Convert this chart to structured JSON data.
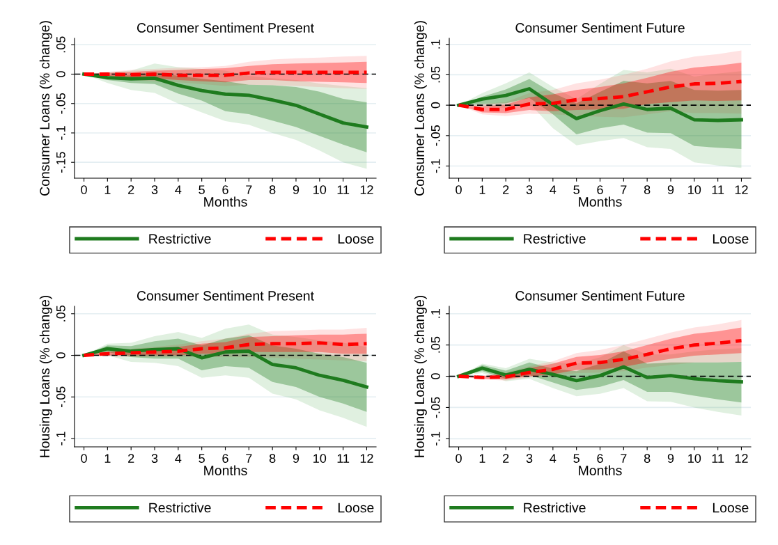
{
  "chart_data": [
    {
      "type": "line",
      "title": "Consumer Sentiment Present",
      "xlabel": "Months",
      "ylabel": "Consumer Loans (% change)",
      "x": [
        0,
        1,
        2,
        3,
        4,
        5,
        6,
        7,
        8,
        9,
        10,
        11,
        12
      ],
      "xlim": [
        -0.4,
        12.4
      ],
      "xticks": [
        0,
        1,
        2,
        3,
        4,
        5,
        6,
        7,
        8,
        9,
        10,
        11,
        12
      ],
      "ylim": [
        -0.177,
        0.061
      ],
      "yticks": [
        {
          "value": -0.15,
          "label": "-.15"
        },
        {
          "value": -0.1,
          "label": "-.1"
        },
        {
          "value": -0.05,
          "label": "-.05"
        },
        0,
        {
          "value": 0.05,
          "label": ".05"
        }
      ],
      "grid": "y",
      "legend": "bottom",
      "ref_lines": [
        {
          "axis": "y",
          "value": 0,
          "color": "#000000",
          "line_style": "dashed"
        }
      ],
      "series": [
        {
          "type": "area",
          "color": "#62b462",
          "values": [
            null,
            null,
            null,
            null,
            null,
            null,
            null,
            null,
            null,
            null,
            null,
            null,
            null
          ],
          "lower": [
            0,
            -0.015,
            -0.027,
            -0.032,
            -0.05,
            -0.065,
            -0.08,
            -0.086,
            -0.1,
            -0.112,
            -0.13,
            -0.15,
            -0.161
          ],
          "upper": [
            0,
            0.003,
            0.006,
            0.018,
            0.012,
            0.009,
            0.006,
            -0.003,
            -0.007,
            -0.01,
            -0.016,
            -0.02,
            -0.024
          ]
        },
        {
          "type": "area",
          "color": "#ff7070",
          "values": [
            null,
            null,
            null,
            null,
            null,
            null,
            null,
            null,
            null,
            null,
            null,
            null,
            null
          ],
          "lower": [
            0,
            -0.005,
            -0.01,
            -0.012,
            -0.014,
            -0.017,
            -0.02,
            -0.018,
            -0.019,
            -0.02,
            -0.022,
            -0.024,
            -0.025
          ],
          "upper": [
            0,
            0.004,
            0.007,
            0.009,
            0.011,
            0.012,
            0.014,
            0.021,
            0.025,
            0.027,
            0.028,
            0.03,
            0.031
          ]
        },
        {
          "name": "Restrictive",
          "color": "#1e7b1e",
          "line_style": "solid",
          "values": [
            0,
            -0.006,
            -0.008,
            -0.007,
            -0.019,
            -0.028,
            -0.034,
            -0.036,
            -0.044,
            -0.053,
            -0.068,
            -0.083,
            -0.09
          ],
          "lower": [
            0,
            -0.01,
            -0.015,
            -0.017,
            -0.033,
            -0.045,
            -0.063,
            -0.068,
            -0.079,
            -0.09,
            -0.105,
            -0.12,
            -0.133
          ],
          "upper": [
            0,
            -0.002,
            -0.002,
            0.003,
            -0.003,
            -0.008,
            -0.012,
            -0.018,
            -0.019,
            -0.022,
            -0.03,
            -0.042,
            -0.048
          ]
        },
        {
          "name": "Loose",
          "color": "#ff0000",
          "line_style": "dashed",
          "values": [
            0,
            0,
            -0.001,
            0,
            -0.002,
            -0.002,
            -0.002,
            0.002,
            0.003,
            0.003,
            0.003,
            0.003,
            0.003
          ],
          "lower": [
            0,
            -0.003,
            -0.006,
            -0.007,
            -0.01,
            -0.012,
            -0.014,
            -0.01,
            -0.01,
            -0.012,
            -0.013,
            -0.014,
            -0.015
          ],
          "upper": [
            0,
            0.002,
            0.004,
            0.006,
            0.007,
            0.009,
            0.01,
            0.014,
            0.017,
            0.018,
            0.019,
            0.02,
            0.021
          ]
        }
      ]
    },
    {
      "type": "line",
      "title": "Consumer Sentiment Future",
      "xlabel": "Months",
      "ylabel": "Consumer Loans (% change)",
      "x": [
        0,
        1,
        2,
        3,
        4,
        5,
        6,
        7,
        8,
        9,
        10,
        11,
        12
      ],
      "xlim": [
        -0.4,
        12.4
      ],
      "xticks": [
        0,
        1,
        2,
        3,
        4,
        5,
        6,
        7,
        8,
        9,
        10,
        11,
        12
      ],
      "ylim": [
        -0.12,
        0.11
      ],
      "yticks": [
        {
          "value": -0.1,
          "label": "-.1"
        },
        {
          "value": -0.05,
          "label": "-.05"
        },
        0,
        {
          "value": 0.05,
          "label": ".05"
        },
        {
          "value": 0.1,
          "label": ".1"
        }
      ],
      "grid": "y",
      "legend": "bottom",
      "ref_lines": [
        {
          "axis": "y",
          "value": 0,
          "color": "#000000",
          "line_style": "dashed"
        }
      ],
      "series": [
        {
          "type": "area",
          "color": "#62b462",
          "values": [
            null,
            null,
            null,
            null,
            null,
            null,
            null,
            null,
            null,
            null,
            null,
            null,
            null
          ],
          "lower": [
            0,
            -0.003,
            -0.004,
            0.003,
            -0.038,
            -0.066,
            -0.059,
            -0.054,
            -0.069,
            -0.072,
            -0.094,
            -0.099,
            -0.103
          ],
          "upper": [
            0,
            0.02,
            0.036,
            0.054,
            0.03,
            0.01,
            0.035,
            0.058,
            0.054,
            0.06,
            0.047,
            0.052,
            0.056
          ]
        },
        {
          "type": "area",
          "color": "#ff7070",
          "values": [
            null,
            null,
            null,
            null,
            null,
            null,
            null,
            null,
            null,
            null,
            null,
            null,
            null
          ],
          "lower": [
            0,
            -0.015,
            -0.018,
            -0.014,
            -0.015,
            -0.017,
            -0.019,
            -0.02,
            -0.015,
            -0.01,
            -0.013,
            -0.013,
            -0.014
          ],
          "upper": [
            0,
            0.002,
            0.005,
            0.02,
            0.025,
            0.036,
            0.042,
            0.05,
            0.06,
            0.072,
            0.08,
            0.084,
            0.09
          ]
        },
        {
          "name": "Restrictive",
          "color": "#1e7b1e",
          "line_style": "solid",
          "values": [
            0,
            0.01,
            0.016,
            0.027,
            0.001,
            -0.022,
            -0.009,
            0.002,
            -0.007,
            -0.005,
            -0.024,
            -0.025,
            -0.024
          ],
          "lower": [
            0,
            0.002,
            0.003,
            0.012,
            -0.015,
            -0.048,
            -0.038,
            -0.032,
            -0.045,
            -0.046,
            -0.067,
            -0.07,
            -0.072
          ],
          "upper": [
            0,
            0.014,
            0.026,
            0.043,
            0.02,
            0.003,
            0.022,
            0.04,
            0.036,
            0.04,
            0.025,
            0.024,
            0.025
          ]
        },
        {
          "name": "Loose",
          "color": "#ff0000",
          "line_style": "dashed",
          "values": [
            0,
            -0.007,
            -0.007,
            0.002,
            0.003,
            0.009,
            0.011,
            0.014,
            0.022,
            0.03,
            0.035,
            0.036,
            0.039
          ],
          "lower": [
            0,
            -0.012,
            -0.013,
            -0.008,
            -0.01,
            -0.008,
            -0.007,
            -0.006,
            0.002,
            0.005,
            0.008,
            0.007,
            0.008
          ],
          "upper": [
            0,
            -0.002,
            0.001,
            0.013,
            0.018,
            0.025,
            0.03,
            0.036,
            0.045,
            0.055,
            0.062,
            0.065,
            0.07
          ]
        }
      ]
    },
    {
      "type": "line",
      "title": "Consumer Sentiment Present",
      "xlabel": "Months",
      "ylabel": "Housing Loans (% change)",
      "x": [
        0,
        1,
        2,
        3,
        4,
        5,
        6,
        7,
        8,
        9,
        10,
        11,
        12
      ],
      "xlim": [
        -0.4,
        12.4
      ],
      "xticks": [
        0,
        1,
        2,
        3,
        4,
        5,
        6,
        7,
        8,
        9,
        10,
        11,
        12
      ],
      "ylim": [
        -0.11,
        0.059
      ],
      "yticks": [
        {
          "value": -0.1,
          "label": "-.1"
        },
        {
          "value": -0.05,
          "label": "-.05"
        },
        0,
        {
          "value": 0.05,
          "label": ".05"
        }
      ],
      "grid": "y",
      "legend": "bottom",
      "ref_lines": [
        {
          "axis": "y",
          "value": 0,
          "color": "#000000",
          "line_style": "dashed"
        }
      ],
      "series": [
        {
          "type": "area",
          "color": "#62b462",
          "values": [
            null,
            null,
            null,
            null,
            null,
            null,
            null,
            null,
            null,
            null,
            null,
            null,
            null
          ],
          "lower": [
            0,
            0,
            -0.008,
            -0.009,
            -0.013,
            -0.027,
            -0.024,
            -0.027,
            -0.046,
            -0.053,
            -0.066,
            -0.075,
            -0.086
          ],
          "upper": [
            0,
            0.014,
            0.015,
            0.023,
            0.028,
            0.021,
            0.032,
            0.037,
            0.025,
            0.022,
            0.018,
            0.015,
            0.01
          ]
        },
        {
          "type": "area",
          "color": "#ff7070",
          "values": [
            null,
            null,
            null,
            null,
            null,
            null,
            null,
            null,
            null,
            null,
            null,
            null,
            null
          ],
          "lower": [
            0,
            -0.001,
            -0.002,
            -0.002,
            -0.002,
            -0.002,
            -0.002,
            -0.002,
            -0.003,
            -0.004,
            -0.005,
            -0.006,
            -0.007
          ],
          "upper": [
            0,
            0.005,
            0.008,
            0.01,
            0.013,
            0.017,
            0.02,
            0.026,
            0.029,
            0.03,
            0.031,
            0.031,
            0.033
          ]
        },
        {
          "name": "Restrictive",
          "color": "#1e7b1e",
          "line_style": "solid",
          "values": [
            0,
            0.008,
            0.005,
            0.007,
            0.008,
            -0.003,
            0.004,
            0.005,
            -0.011,
            -0.015,
            -0.024,
            -0.03,
            -0.038
          ],
          "lower": [
            0,
            0.004,
            -0.002,
            -0.004,
            -0.004,
            -0.018,
            -0.013,
            -0.015,
            -0.032,
            -0.038,
            -0.05,
            -0.058,
            -0.068
          ],
          "upper": [
            0,
            0.012,
            0.011,
            0.017,
            0.02,
            0.012,
            0.02,
            0.024,
            0.012,
            0.008,
            0.002,
            -0.002,
            -0.009
          ]
        },
        {
          "name": "Loose",
          "color": "#ff0000",
          "line_style": "dashed",
          "values": [
            0,
            0.002,
            0.003,
            0.004,
            0.005,
            0.008,
            0.009,
            0.013,
            0.014,
            0.014,
            0.015,
            0.013,
            0.014
          ],
          "lower": [
            0,
            0,
            0,
            0,
            0,
            0.002,
            0.002,
            0.004,
            0.004,
            0.004,
            0.004,
            0.002,
            0.002
          ],
          "upper": [
            0,
            0.004,
            0.006,
            0.008,
            0.01,
            0.014,
            0.016,
            0.022,
            0.023,
            0.024,
            0.025,
            0.025,
            0.026
          ]
        }
      ]
    },
    {
      "type": "line",
      "title": "Consumer Sentiment Future",
      "xlabel": "Months",
      "ylabel": "Housing Loans (% change)",
      "x": [
        0,
        1,
        2,
        3,
        4,
        5,
        6,
        7,
        8,
        9,
        10,
        11,
        12
      ],
      "xlim": [
        -0.4,
        12.4
      ],
      "xticks": [
        0,
        1,
        2,
        3,
        4,
        5,
        6,
        7,
        8,
        9,
        10,
        11,
        12
      ],
      "ylim": [
        -0.113,
        0.112
      ],
      "yticks": [
        {
          "value": -0.1,
          "label": "-.1"
        },
        {
          "value": -0.05,
          "label": "-.05"
        },
        0,
        {
          "value": 0.05,
          "label": ".05"
        },
        {
          "value": 0.1,
          "label": ".1"
        }
      ],
      "grid": "y",
      "legend": "bottom",
      "ref_lines": [
        {
          "axis": "y",
          "value": 0,
          "color": "#000000",
          "line_style": "dashed"
        }
      ],
      "series": [
        {
          "type": "area",
          "color": "#62b462",
          "values": [
            null,
            null,
            null,
            null,
            null,
            null,
            null,
            null,
            null,
            null,
            null,
            null,
            null
          ],
          "lower": [
            0,
            0.005,
            -0.008,
            -0.004,
            -0.019,
            -0.032,
            -0.028,
            -0.019,
            -0.04,
            -0.041,
            -0.05,
            -0.057,
            -0.063
          ],
          "upper": [
            0,
            0.02,
            0.013,
            0.028,
            0.022,
            0.02,
            0.03,
            0.05,
            0.035,
            0.035,
            0.04,
            0.043,
            0.045
          ]
        },
        {
          "type": "area",
          "color": "#ff7070",
          "values": [
            null,
            null,
            null,
            null,
            null,
            null,
            null,
            null,
            null,
            null,
            null,
            null,
            null
          ],
          "lower": [
            0,
            -0.005,
            -0.007,
            -0.002,
            0,
            0.005,
            0.006,
            0.008,
            0.014,
            0.018,
            0.022,
            0.022,
            0.023
          ],
          "upper": [
            0,
            0.001,
            0.006,
            0.016,
            0.024,
            0.037,
            0.042,
            0.05,
            0.06,
            0.07,
            0.078,
            0.083,
            0.09
          ]
        },
        {
          "name": "Restrictive",
          "color": "#1e7b1e",
          "line_style": "solid",
          "values": [
            0,
            0.013,
            0.002,
            0.011,
            0.003,
            -0.007,
            0.001,
            0.015,
            -0.002,
            0.001,
            -0.004,
            -0.007,
            -0.009
          ],
          "lower": [
            0,
            0.008,
            -0.004,
            0.002,
            -0.01,
            -0.022,
            -0.017,
            -0.006,
            -0.025,
            -0.025,
            -0.031,
            -0.037,
            -0.042
          ],
          "upper": [
            0,
            0.018,
            0.009,
            0.022,
            0.012,
            0.008,
            0.02,
            0.04,
            0.02,
            0.022,
            0.022,
            0.022,
            0.023
          ]
        },
        {
          "name": "Loose",
          "color": "#ff0000",
          "line_style": "dashed",
          "values": [
            0,
            -0.002,
            -0.001,
            0.006,
            0.011,
            0.021,
            0.022,
            0.027,
            0.035,
            0.044,
            0.05,
            0.053,
            0.057
          ],
          "lower": [
            0,
            -0.004,
            -0.005,
            0,
            0.003,
            0.01,
            0.011,
            0.015,
            0.022,
            0.028,
            0.033,
            0.035,
            0.037
          ],
          "upper": [
            0,
            0,
            0.004,
            0.013,
            0.02,
            0.031,
            0.034,
            0.04,
            0.05,
            0.06,
            0.068,
            0.072,
            0.078
          ]
        }
      ]
    }
  ]
}
